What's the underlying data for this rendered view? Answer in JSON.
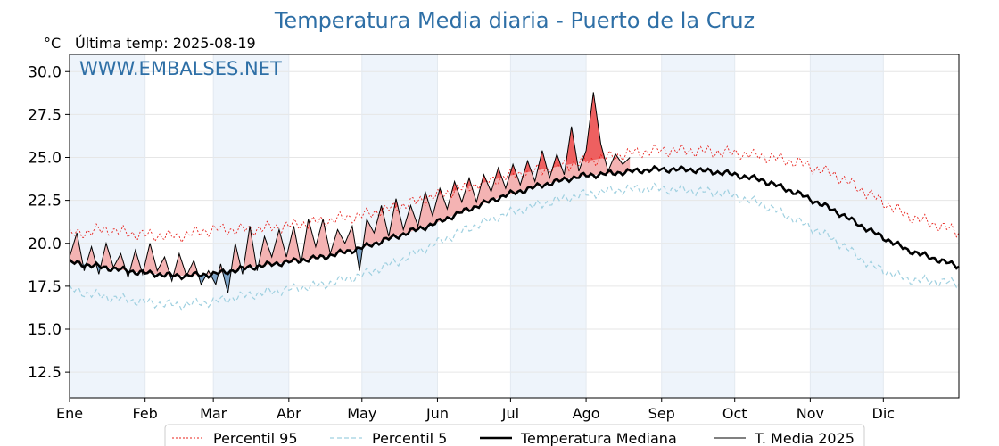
{
  "title": "Temperatura Media diaria - Puerto de la Cruz",
  "unit_label": "°C",
  "last_temp_label": "Última temp: 2025-08-19",
  "watermark": "WWW.EMBALSES.NET",
  "colors": {
    "title": "#2e6fa6",
    "p95": "#e8201a",
    "p5": "#9fd0e0",
    "median": "#000000",
    "current": "#000000",
    "above_fill": "#f4b3b3",
    "above_strong": "#ee6060",
    "below_fill": "#7da4c8",
    "month_band": "#eef4fb"
  },
  "legend": {
    "p95": "Percentil 95",
    "p5": "Percentil 5",
    "median": "Temperatura Mediana",
    "current": "T. Media 2025"
  },
  "chart_data": {
    "type": "line",
    "title": "Temperatura Media diaria - Puerto de la Cruz",
    "ylabel": "°C",
    "ylim": [
      11,
      31
    ],
    "yticks": [
      "12.5",
      "15.0",
      "17.5",
      "20.0",
      "22.5",
      "25.0",
      "27.5",
      "30.0"
    ],
    "ytick_values": [
      12.5,
      15.0,
      17.5,
      20.0,
      22.5,
      25.0,
      27.5,
      30.0
    ],
    "xlim": [
      1,
      366
    ],
    "months": [
      "Ene",
      "Feb",
      "Mar",
      "Abr",
      "May",
      "Jun",
      "Jul",
      "Ago",
      "Sep",
      "Oct",
      "Nov",
      "Dic"
    ],
    "month_start_days": [
      1,
      32,
      60,
      91,
      121,
      152,
      182,
      213,
      244,
      274,
      305,
      335
    ],
    "grid": true,
    "legend_position": "bottom",
    "series": [
      {
        "name": "Percentil 95",
        "style": "dotted",
        "x": [
          1,
          15,
          30,
          45,
          60,
          75,
          90,
          105,
          120,
          135,
          150,
          165,
          180,
          195,
          210,
          225,
          240,
          255,
          270,
          285,
          300,
          315,
          330,
          345,
          365
        ],
        "y": [
          20.5,
          20.8,
          20.5,
          20.4,
          20.8,
          20.8,
          21.0,
          21.3,
          21.6,
          22.1,
          22.7,
          23.3,
          23.9,
          24.3,
          24.7,
          25.1,
          25.4,
          25.4,
          25.3,
          25.1,
          24.7,
          24.0,
          22.8,
          21.6,
          20.7
        ]
      },
      {
        "name": "Percentil 5",
        "style": "dashed",
        "x": [
          1,
          15,
          30,
          45,
          60,
          75,
          90,
          105,
          120,
          135,
          150,
          165,
          180,
          195,
          210,
          225,
          240,
          255,
          270,
          285,
          300,
          315,
          330,
          345,
          365
        ],
        "y": [
          17.3,
          16.9,
          16.6,
          16.4,
          16.6,
          17.0,
          17.3,
          17.6,
          18.1,
          18.9,
          19.9,
          20.9,
          21.7,
          22.3,
          22.8,
          23.1,
          23.2,
          23.1,
          22.9,
          22.3,
          21.3,
          20.2,
          18.7,
          17.9,
          17.7
        ]
      },
      {
        "name": "Temperatura Mediana",
        "style": "thick",
        "x": [
          1,
          15,
          30,
          45,
          60,
          75,
          90,
          105,
          120,
          135,
          150,
          165,
          180,
          195,
          210,
          225,
          240,
          255,
          270,
          285,
          300,
          315,
          330,
          345,
          365
        ],
        "y": [
          18.9,
          18.6,
          18.3,
          18.1,
          18.2,
          18.6,
          18.9,
          19.2,
          19.7,
          20.4,
          21.1,
          22.0,
          22.8,
          23.4,
          23.9,
          24.1,
          24.3,
          24.3,
          24.1,
          23.7,
          22.9,
          21.9,
          20.7,
          19.6,
          18.7
        ]
      },
      {
        "name": "T. Media 2025",
        "style": "thin",
        "x": [
          1,
          4,
          7,
          10,
          13,
          16,
          19,
          22,
          25,
          28,
          31,
          34,
          37,
          40,
          43,
          46,
          49,
          52,
          55,
          58,
          61,
          63,
          66,
          69,
          72,
          75,
          78,
          81,
          84,
          87,
          90,
          93,
          96,
          99,
          102,
          105,
          108,
          111,
          114,
          117,
          120,
          123,
          126,
          129,
          132,
          135,
          138,
          141,
          144,
          147,
          150,
          153,
          156,
          159,
          162,
          165,
          168,
          171,
          174,
          177,
          180,
          183,
          186,
          189,
          192,
          195,
          198,
          201,
          204,
          207,
          210,
          213,
          216,
          219,
          222,
          225,
          228,
          231
        ],
        "y": [
          19.2,
          20.6,
          18.4,
          19.8,
          18.2,
          20.0,
          18.6,
          19.4,
          18.0,
          19.6,
          18.2,
          20.0,
          18.4,
          19.2,
          17.8,
          19.4,
          18.1,
          19.0,
          17.6,
          18.4,
          17.6,
          18.8,
          17.1,
          20.0,
          18.2,
          21.0,
          18.4,
          20.4,
          19.2,
          20.8,
          19.2,
          21.0,
          18.8,
          21.4,
          19.8,
          21.4,
          19.4,
          20.8,
          20.0,
          21.0,
          18.4,
          21.4,
          20.6,
          22.2,
          20.4,
          22.6,
          20.8,
          22.2,
          21.0,
          23.0,
          21.6,
          23.2,
          22.0,
          23.6,
          22.4,
          23.8,
          22.4,
          24.0,
          23.0,
          24.4,
          23.2,
          24.6,
          23.4,
          24.8,
          23.6,
          25.4,
          23.8,
          25.2,
          24.0,
          26.8,
          24.2,
          25.4,
          28.8,
          25.8,
          24.2,
          25.2,
          24.6,
          25.0
        ]
      }
    ]
  }
}
